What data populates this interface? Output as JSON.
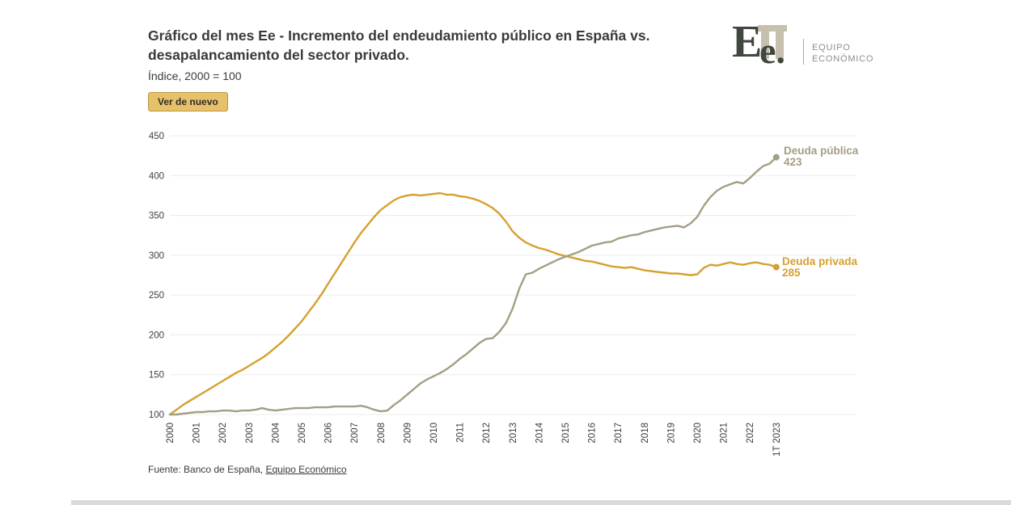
{
  "header": {
    "title_line1": "Gráfico del mes Ee - Incremento del endeudamiento público en España vs.",
    "title_line2": "desapalancamiento del sector privado.",
    "subtitle": "Índice, 2000 = 100",
    "replay_button": "Ver de nuevo"
  },
  "logo": {
    "monogram_big": "E",
    "monogram_small": "e.",
    "line1": "EQUIPO",
    "line2": "ECONÓMICO"
  },
  "footer": {
    "prefix": "Fuente: Banco de España, ",
    "link": "Equipo Económico"
  },
  "chart_data": {
    "type": "line",
    "title": "Gráfico del mes Ee - Incremento del endeudamiento público en España vs. desapalancamiento del sector privado.",
    "subtitle": "Índice, 2000 = 100",
    "source": "Fuente: Banco de España, Equipo Económico",
    "grid": true,
    "legend_position": "end-of-line",
    "x_axis": {
      "labels": [
        "2000",
        "2001",
        "2002",
        "2003",
        "2004",
        "2005",
        "2006",
        "2007",
        "2008",
        "2009",
        "2010",
        "2011",
        "2012",
        "2013",
        "2014",
        "2015",
        "2016",
        "2017",
        "2018",
        "2019",
        "2020",
        "2021",
        "2022",
        "1T 2023"
      ]
    },
    "y_axis": {
      "ticks": [
        100,
        150,
        200,
        250,
        300,
        350,
        400,
        450
      ],
      "min": 100,
      "max": 450
    },
    "series": [
      {
        "id": "deuda-publica",
        "name": "Deuda pública",
        "color": "#A49E84",
        "end_value": 423,
        "points": [
          [
            2000,
            100
          ],
          [
            2000.25,
            100
          ],
          [
            2000.5,
            101
          ],
          [
            2000.75,
            102
          ],
          [
            2001,
            103
          ],
          [
            2001.25,
            103
          ],
          [
            2001.5,
            104
          ],
          [
            2001.75,
            104
          ],
          [
            2002,
            105
          ],
          [
            2002.25,
            105
          ],
          [
            2002.5,
            104
          ],
          [
            2002.75,
            105
          ],
          [
            2003,
            105
          ],
          [
            2003.25,
            106
          ],
          [
            2003.5,
            108
          ],
          [
            2003.75,
            106
          ],
          [
            2004,
            105
          ],
          [
            2004.25,
            106
          ],
          [
            2004.5,
            107
          ],
          [
            2004.75,
            108
          ],
          [
            2005,
            108
          ],
          [
            2005.25,
            108
          ],
          [
            2005.5,
            109
          ],
          [
            2005.75,
            109
          ],
          [
            2006,
            109
          ],
          [
            2006.25,
            110
          ],
          [
            2006.5,
            110
          ],
          [
            2006.75,
            110
          ],
          [
            2007,
            110
          ],
          [
            2007.25,
            111
          ],
          [
            2007.5,
            109
          ],
          [
            2007.75,
            106
          ],
          [
            2008,
            104
          ],
          [
            2008.25,
            105
          ],
          [
            2008.5,
            112
          ],
          [
            2008.75,
            118
          ],
          [
            2009,
            125
          ],
          [
            2009.25,
            132
          ],
          [
            2009.5,
            139
          ],
          [
            2009.75,
            144
          ],
          [
            2010,
            148
          ],
          [
            2010.25,
            152
          ],
          [
            2010.5,
            157
          ],
          [
            2010.75,
            163
          ],
          [
            2011,
            170
          ],
          [
            2011.25,
            176
          ],
          [
            2011.5,
            183
          ],
          [
            2011.75,
            190
          ],
          [
            2012,
            195
          ],
          [
            2012.25,
            196
          ],
          [
            2012.5,
            204
          ],
          [
            2012.75,
            215
          ],
          [
            2013,
            233
          ],
          [
            2013.25,
            258
          ],
          [
            2013.5,
            276
          ],
          [
            2013.75,
            278
          ],
          [
            2014,
            283
          ],
          [
            2014.25,
            287
          ],
          [
            2014.5,
            291
          ],
          [
            2014.75,
            295
          ],
          [
            2015,
            298
          ],
          [
            2015.25,
            301
          ],
          [
            2015.5,
            304
          ],
          [
            2015.75,
            308
          ],
          [
            2016,
            312
          ],
          [
            2016.25,
            314
          ],
          [
            2016.5,
            316
          ],
          [
            2016.75,
            317
          ],
          [
            2017,
            321
          ],
          [
            2017.25,
            323
          ],
          [
            2017.5,
            325
          ],
          [
            2017.75,
            326
          ],
          [
            2018,
            329
          ],
          [
            2018.25,
            331
          ],
          [
            2018.5,
            333
          ],
          [
            2018.75,
            335
          ],
          [
            2019,
            336
          ],
          [
            2019.25,
            337
          ],
          [
            2019.5,
            335
          ],
          [
            2019.75,
            340
          ],
          [
            2020,
            348
          ],
          [
            2020.25,
            362
          ],
          [
            2020.5,
            373
          ],
          [
            2020.75,
            381
          ],
          [
            2021,
            386
          ],
          [
            2021.25,
            389
          ],
          [
            2021.5,
            392
          ],
          [
            2021.75,
            390
          ],
          [
            2022,
            397
          ],
          [
            2022.25,
            405
          ],
          [
            2022.5,
            412
          ],
          [
            2022.75,
            415
          ],
          [
            2023,
            423
          ]
        ]
      },
      {
        "id": "deuda-privada",
        "name": "Deuda privada",
        "color": "#D6A02F",
        "end_value": 285,
        "points": [
          [
            2000,
            100
          ],
          [
            2000.25,
            106
          ],
          [
            2000.5,
            112
          ],
          [
            2000.75,
            117
          ],
          [
            2001,
            122
          ],
          [
            2001.25,
            127
          ],
          [
            2001.5,
            132
          ],
          [
            2001.75,
            137
          ],
          [
            2002,
            142
          ],
          [
            2002.25,
            147
          ],
          [
            2002.5,
            152
          ],
          [
            2002.75,
            156
          ],
          [
            2003,
            161
          ],
          [
            2003.25,
            166
          ],
          [
            2003.5,
            171
          ],
          [
            2003.75,
            177
          ],
          [
            2004,
            184
          ],
          [
            2004.25,
            191
          ],
          [
            2004.5,
            199
          ],
          [
            2004.75,
            208
          ],
          [
            2005,
            217
          ],
          [
            2005.25,
            228
          ],
          [
            2005.5,
            239
          ],
          [
            2005.75,
            251
          ],
          [
            2006,
            264
          ],
          [
            2006.25,
            277
          ],
          [
            2006.5,
            290
          ],
          [
            2006.75,
            303
          ],
          [
            2007,
            316
          ],
          [
            2007.25,
            328
          ],
          [
            2007.5,
            338
          ],
          [
            2007.75,
            348
          ],
          [
            2008,
            357
          ],
          [
            2008.25,
            363
          ],
          [
            2008.5,
            369
          ],
          [
            2008.75,
            373
          ],
          [
            2009,
            375
          ],
          [
            2009.25,
            376
          ],
          [
            2009.5,
            375
          ],
          [
            2009.75,
            376
          ],
          [
            2010,
            377
          ],
          [
            2010.25,
            378
          ],
          [
            2010.5,
            376
          ],
          [
            2010.75,
            376
          ],
          [
            2011,
            374
          ],
          [
            2011.25,
            373
          ],
          [
            2011.5,
            371
          ],
          [
            2011.75,
            368
          ],
          [
            2012,
            364
          ],
          [
            2012.25,
            359
          ],
          [
            2012.5,
            352
          ],
          [
            2012.75,
            342
          ],
          [
            2013,
            330
          ],
          [
            2013.25,
            322
          ],
          [
            2013.5,
            316
          ],
          [
            2013.75,
            312
          ],
          [
            2014,
            309
          ],
          [
            2014.25,
            307
          ],
          [
            2014.5,
            304
          ],
          [
            2014.75,
            301
          ],
          [
            2015,
            299
          ],
          [
            2015.25,
            297
          ],
          [
            2015.5,
            295
          ],
          [
            2015.75,
            293
          ],
          [
            2016,
            292
          ],
          [
            2016.25,
            290
          ],
          [
            2016.5,
            288
          ],
          [
            2016.75,
            286
          ],
          [
            2017,
            285
          ],
          [
            2017.25,
            284
          ],
          [
            2017.5,
            285
          ],
          [
            2017.75,
            283
          ],
          [
            2018,
            281
          ],
          [
            2018.25,
            280
          ],
          [
            2018.5,
            279
          ],
          [
            2018.75,
            278
          ],
          [
            2019,
            277
          ],
          [
            2019.25,
            277
          ],
          [
            2019.5,
            276
          ],
          [
            2019.75,
            275
          ],
          [
            2020,
            276
          ],
          [
            2020.25,
            284
          ],
          [
            2020.5,
            288
          ],
          [
            2020.75,
            287
          ],
          [
            2021,
            289
          ],
          [
            2021.25,
            291
          ],
          [
            2021.5,
            289
          ],
          [
            2021.75,
            288
          ],
          [
            2022,
            290
          ],
          [
            2022.25,
            291
          ],
          [
            2022.5,
            289
          ],
          [
            2022.75,
            288
          ],
          [
            2023,
            285
          ]
        ]
      }
    ]
  }
}
